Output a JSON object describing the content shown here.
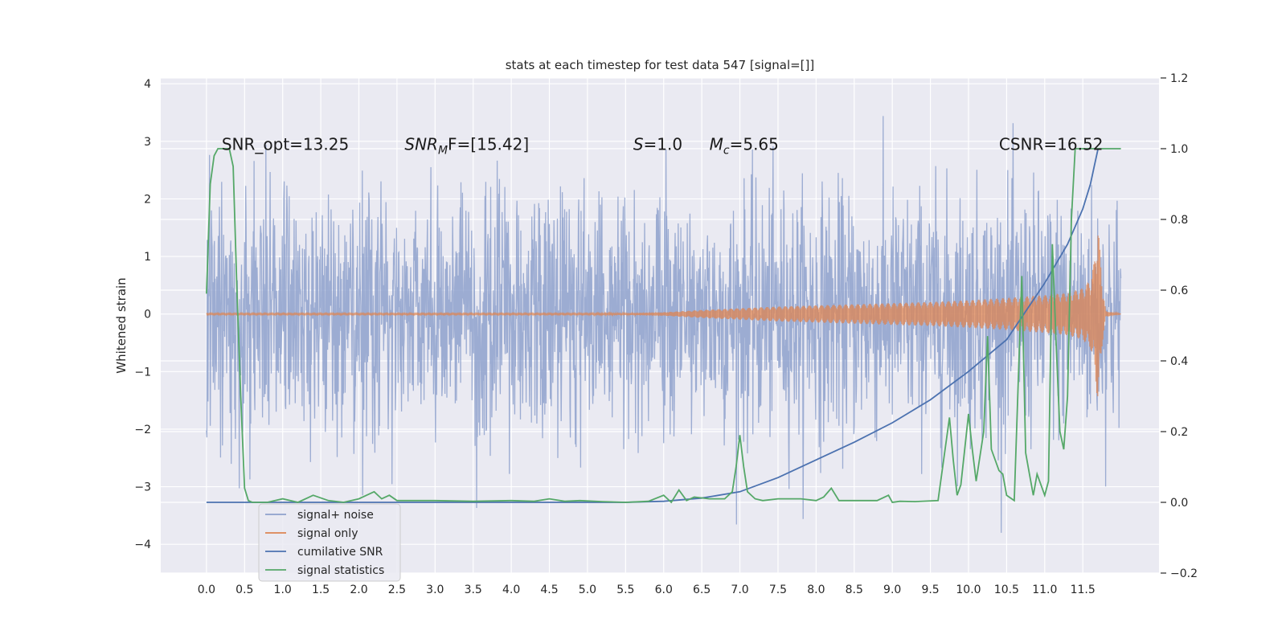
{
  "chart_data": {
    "type": "line",
    "title": "stats at each timestep for test data 547 [signal=[]]",
    "xlabel": "",
    "ylabel": "Whitened strain",
    "xlim": [
      -0.6,
      12.5
    ],
    "ylim": [
      -4.5,
      4.1
    ],
    "y2lim": [
      -0.2,
      1.2
    ],
    "grid": true,
    "x_ticks": [
      0.0,
      0.5,
      1.0,
      1.5,
      2.0,
      2.5,
      3.0,
      3.5,
      4.0,
      4.5,
      5.0,
      5.5,
      6.0,
      6.5,
      7.0,
      7.5,
      8.0,
      8.5,
      9.0,
      9.5,
      10.0,
      10.5,
      11.0,
      11.5
    ],
    "x_tick_labels": [
      "0.0",
      "0.5",
      "1.0",
      "1.5",
      "2.0",
      "2.5",
      "3.0",
      "3.5",
      "4.0",
      "4.5",
      "5.0",
      "5.5",
      "6.0",
      "6.5",
      "7.0",
      "7.5",
      "8.0",
      "8.5",
      "9.0",
      "9.5",
      "10.0",
      "10.5",
      "11.0",
      "11.5"
    ],
    "y_ticks": [
      -4,
      -3,
      -2,
      -1,
      0,
      1,
      2,
      3,
      4
    ],
    "y_tick_labels": [
      "−4",
      "−3",
      "−2",
      "−1",
      "0",
      "1",
      "2",
      "3",
      "4"
    ],
    "y2_ticks": [
      -0.2,
      0.0,
      0.2,
      0.4,
      0.6,
      0.8,
      1.0,
      1.2
    ],
    "y2_tick_labels": [
      "−0.2",
      "0.0",
      "0.2",
      "0.4",
      "0.6",
      "0.8",
      "1.0",
      "1.2"
    ],
    "legend_position": "lower-left",
    "series": [
      {
        "name": "signal+ noise",
        "axis": "left",
        "color": "#8ea1cc",
        "x_range": [
          0.0,
          12.0
        ],
        "y_range_approx": [
          -3.8,
          3.6
        ],
        "description_values": "dense noisy strain, amplitude about ±2.2 with spikes to ±3.6"
      },
      {
        "name": "signal only",
        "axis": "left",
        "color": "#dd8452",
        "x": [
          0.0,
          1.0,
          2.0,
          3.0,
          4.0,
          5.0,
          5.5,
          6.0,
          6.5,
          7.0,
          7.5,
          8.0,
          8.5,
          9.0,
          9.5,
          10.0,
          10.5,
          11.0,
          11.3,
          11.5,
          11.6,
          11.65,
          11.7,
          11.75,
          11.8,
          12.0
        ],
        "envelope": [
          0.01,
          0.01,
          0.01,
          0.01,
          0.01,
          0.01,
          0.015,
          0.03,
          0.07,
          0.1,
          0.13,
          0.15,
          0.17,
          0.19,
          0.21,
          0.24,
          0.28,
          0.33,
          0.37,
          0.45,
          0.6,
          0.9,
          1.6,
          0.6,
          0.05,
          0.0
        ]
      },
      {
        "name": "cumilative SNR",
        "axis": "right",
        "color": "#4c72b0",
        "x": [
          0.0,
          5.5,
          6.0,
          6.5,
          7.0,
          7.5,
          8.0,
          8.5,
          9.0,
          9.5,
          10.0,
          10.5,
          11.0,
          11.3,
          11.5,
          11.6,
          11.65,
          11.7
        ],
        "y": [
          0.0,
          0.0,
          0.003,
          0.012,
          0.03,
          0.07,
          0.12,
          0.17,
          0.225,
          0.29,
          0.37,
          0.46,
          0.62,
          0.73,
          0.83,
          0.9,
          0.95,
          1.0
        ]
      },
      {
        "name": "signal statistics",
        "axis": "right",
        "color": "#55a868",
        "x": [
          0.0,
          0.05,
          0.1,
          0.15,
          0.2,
          0.25,
          0.3,
          0.35,
          0.4,
          0.45,
          0.5,
          0.55,
          0.6,
          0.8,
          1.0,
          1.2,
          1.4,
          1.6,
          1.8,
          2.0,
          2.1,
          2.2,
          2.3,
          2.4,
          2.5,
          2.7,
          2.9,
          3.0,
          3.5,
          4.0,
          4.3,
          4.5,
          4.7,
          4.9,
          5.2,
          5.5,
          5.8,
          6.0,
          6.1,
          6.2,
          6.3,
          6.4,
          6.6,
          6.8,
          6.9,
          6.95,
          7.0,
          7.05,
          7.1,
          7.2,
          7.3,
          7.5,
          7.8,
          8.0,
          8.1,
          8.2,
          8.3,
          8.5,
          8.8,
          8.95,
          9.0,
          9.1,
          9.3,
          9.6,
          9.75,
          9.8,
          9.85,
          9.9,
          10.0,
          10.05,
          10.1,
          10.2,
          10.25,
          10.3,
          10.4,
          10.45,
          10.5,
          10.6,
          10.7,
          10.75,
          10.8,
          10.85,
          10.9,
          11.0,
          11.05,
          11.1,
          11.15,
          11.2,
          11.25,
          11.3,
          11.35,
          11.4,
          11.45,
          11.5,
          11.6,
          12.0
        ],
        "y": [
          0.59,
          0.9,
          0.98,
          1.0,
          1.0,
          1.0,
          1.0,
          0.95,
          0.6,
          0.3,
          0.04,
          0.005,
          0.0,
          0.0,
          0.01,
          0.0,
          0.02,
          0.005,
          0.0,
          0.01,
          0.02,
          0.03,
          0.01,
          0.02,
          0.005,
          0.005,
          0.005,
          0.005,
          0.003,
          0.005,
          0.003,
          0.01,
          0.003,
          0.005,
          0.002,
          0.0,
          0.003,
          0.02,
          0.0,
          0.035,
          0.005,
          0.015,
          0.01,
          0.01,
          0.03,
          0.1,
          0.19,
          0.1,
          0.03,
          0.01,
          0.005,
          0.01,
          0.01,
          0.005,
          0.015,
          0.04,
          0.005,
          0.005,
          0.005,
          0.02,
          0.0,
          0.003,
          0.002,
          0.005,
          0.24,
          0.12,
          0.02,
          0.05,
          0.25,
          0.15,
          0.06,
          0.2,
          0.47,
          0.15,
          0.09,
          0.08,
          0.02,
          0.005,
          0.64,
          0.14,
          0.08,
          0.02,
          0.08,
          0.02,
          0.06,
          0.73,
          0.45,
          0.2,
          0.15,
          0.3,
          0.8,
          1.0,
          1.0,
          1.0,
          1.0,
          1.0
        ]
      }
    ],
    "annotations": [
      {
        "id": "snr-opt",
        "text": "SNR_opt=13.25",
        "x": 0.2,
        "y": 2.95
      },
      {
        "id": "snr-mf",
        "base": "SNR",
        "sub": "M",
        "rest": "F=[15.42]",
        "x": 2.6,
        "y": 2.95
      },
      {
        "id": "s-value",
        "base": "S",
        "rest": "=1.0",
        "x": 5.6,
        "y": 2.95
      },
      {
        "id": "mc-value",
        "base": "M",
        "sub": "c",
        "rest": "=5.65",
        "x": 6.6,
        "y": 2.95
      },
      {
        "id": "csnr",
        "text": "CSNR=16.52",
        "x": 10.4,
        "y": 2.95
      }
    ]
  }
}
